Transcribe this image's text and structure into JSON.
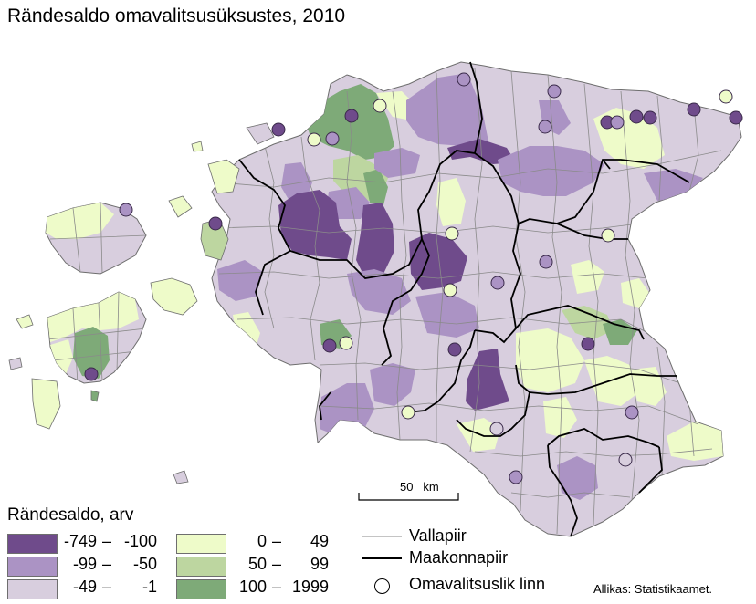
{
  "title": "Rändesaldo omavalitsusüksustes, 2010",
  "legend": {
    "title": "Rändesaldo, arv",
    "classes": [
      {
        "lo": "-749",
        "hi": "-100",
        "color": "#6f4b8b"
      },
      {
        "lo": "-99",
        "hi": "-50",
        "color": "#ab93c4"
      },
      {
        "lo": "-49",
        "hi": "-1",
        "color": "#d8cede"
      },
      {
        "lo": "0",
        "hi": "49",
        "color": "#eefbc9"
      },
      {
        "lo": "50",
        "hi": "99",
        "color": "#bdd6a0"
      },
      {
        "lo": "100",
        "hi": "1999",
        "color": "#7eaa78"
      }
    ],
    "boundaries": [
      {
        "label": "Vallapiir",
        "color": "#888888"
      },
      {
        "label": "Maakonnapiir",
        "color": "#000000"
      }
    ],
    "city_label": "Omavalitsuslik linn"
  },
  "scale_bar": {
    "value": "50",
    "unit": "km"
  },
  "source": "Allikas: Statistikaamet."
}
